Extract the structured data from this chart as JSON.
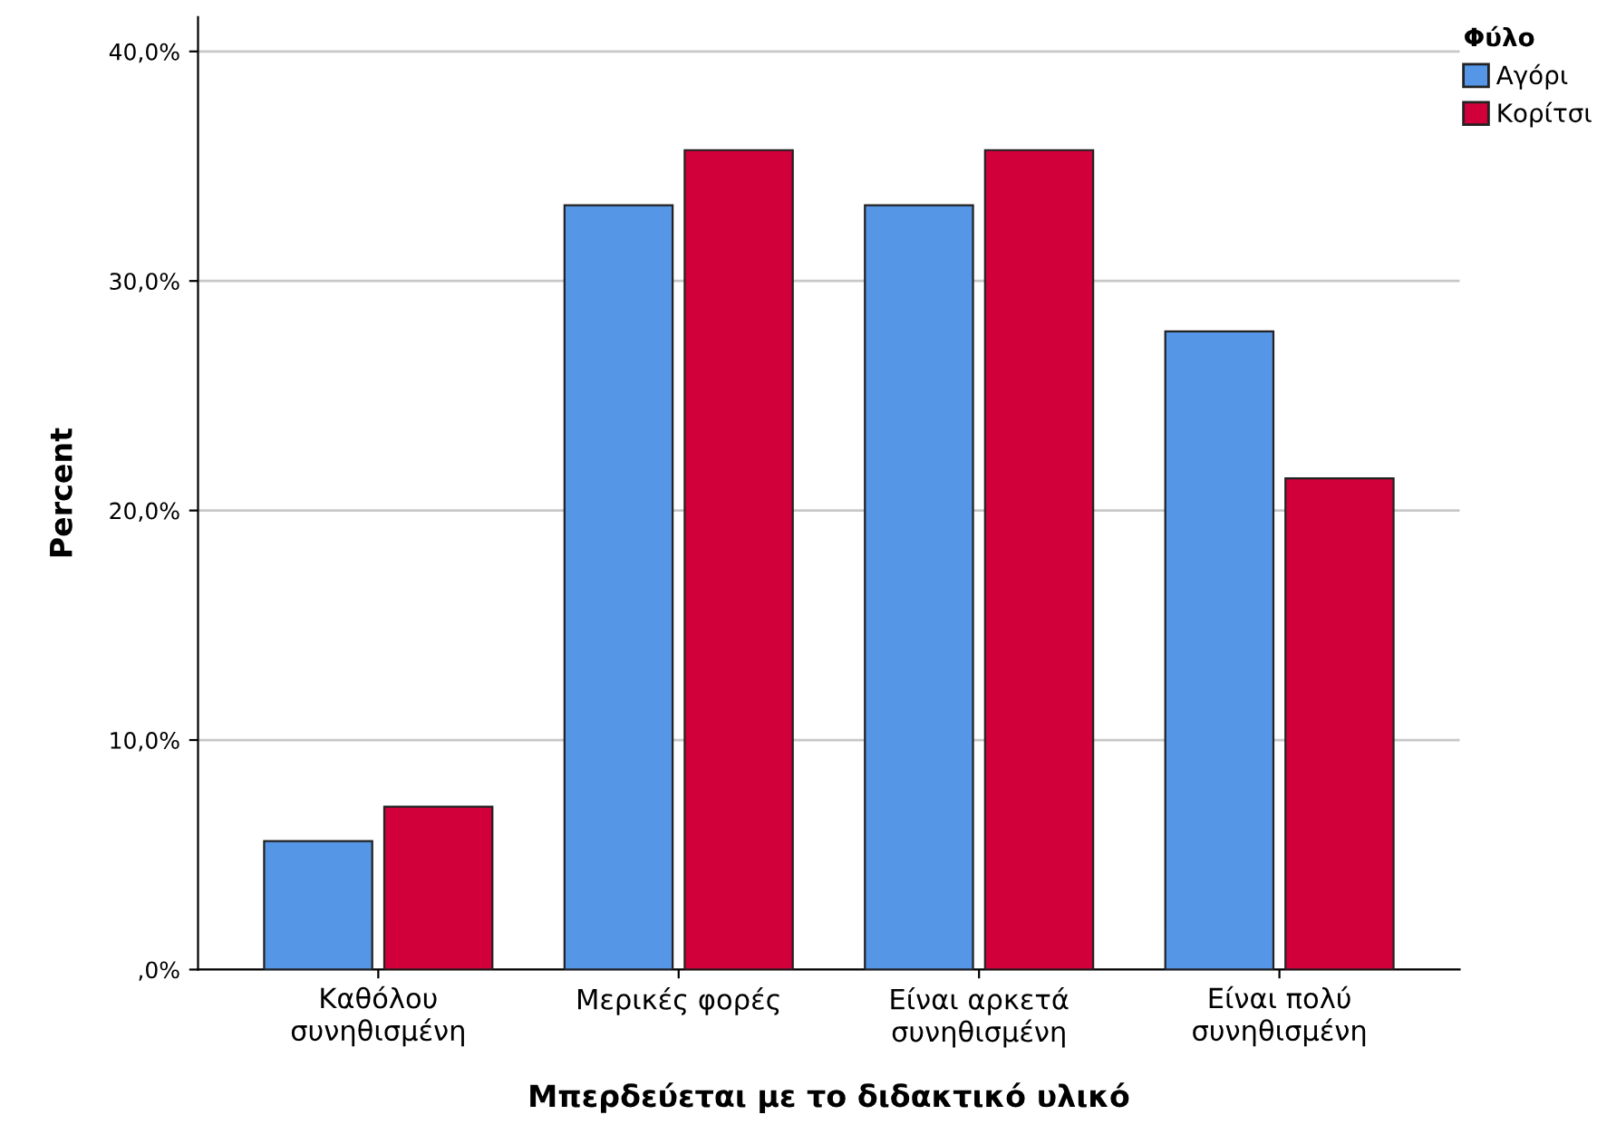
{
  "chart_data": {
    "type": "bar",
    "xlabel": "Μπερδεύεται με το διδακτικό υλικό",
    "ylabel": "Percent",
    "legend_title": "Φύλο",
    "categories": [
      "Καθόλου\nσυνηθισμένη",
      "Μερικές φορές",
      "Είναι αρκετά\nσυνηθισμένη",
      "Είναι πολύ\nσυνηθισμένη"
    ],
    "series": [
      {
        "name": "Αγόρι",
        "color": "#5596e6",
        "values": [
          5.6,
          33.3,
          33.3,
          27.8
        ]
      },
      {
        "name": "Κορίτσι",
        "color": "#d2003a",
        "values": [
          7.1,
          35.7,
          35.7,
          21.4
        ]
      }
    ],
    "ylim": [
      0,
      41.5
    ],
    "yticks": [
      {
        "value": 0,
        "label": ",0%"
      },
      {
        "value": 10,
        "label": "10,0%"
      },
      {
        "value": 20,
        "label": "20,0%"
      },
      {
        "value": 30,
        "label": "30,0%"
      },
      {
        "value": 40,
        "label": "40,0%"
      }
    ],
    "grid": "y",
    "legend": "top right"
  }
}
